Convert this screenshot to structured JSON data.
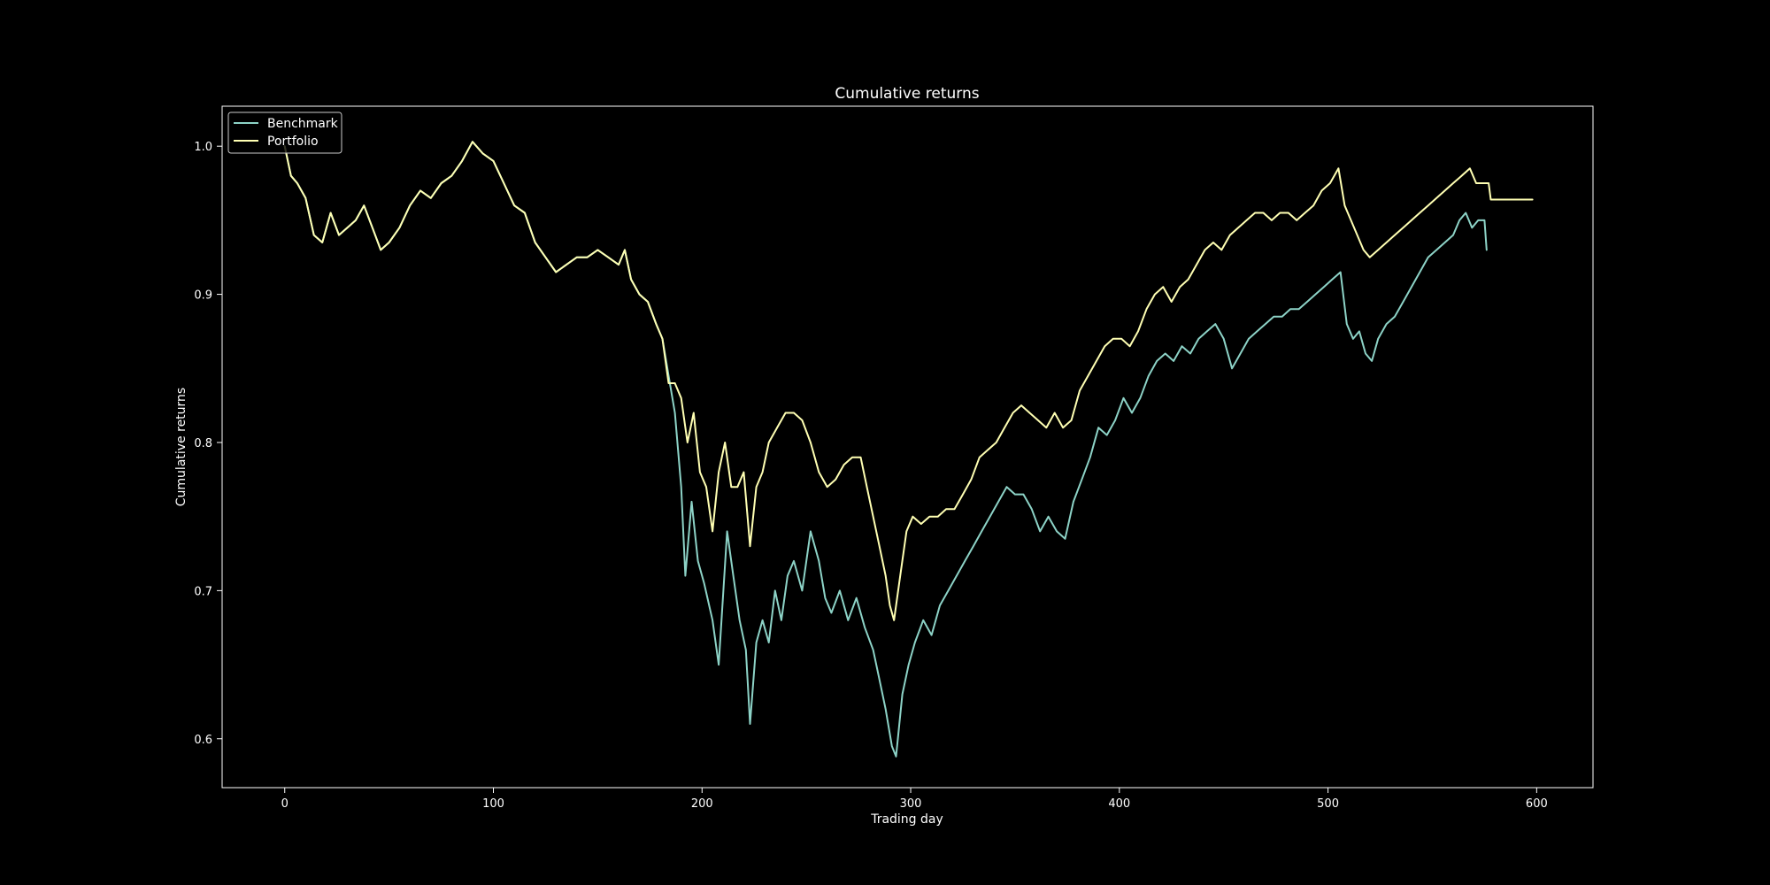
{
  "chart_data": {
    "type": "line",
    "title": "Cumulative returns",
    "xlabel": "Trading day",
    "ylabel": "Cumulative returns",
    "xlim": [
      -30,
      627
    ],
    "ylim": [
      0.567,
      1.027
    ],
    "xticks": [
      0,
      100,
      200,
      300,
      400,
      500,
      600
    ],
    "yticks": [
      0.6,
      0.7,
      0.8,
      0.9,
      1.0
    ],
    "xtick_labels": [
      "0",
      "100",
      "200",
      "300",
      "400",
      "500",
      "600"
    ],
    "ytick_labels": [
      "0.6",
      "0.7",
      "0.8",
      "0.9",
      "1.0"
    ],
    "grid": false,
    "legend_position": "top-left",
    "background": "#000000",
    "foreground": "#ffffff",
    "series": [
      {
        "name": "Benchmark",
        "color": "#8dd3c7",
        "points": [
          [
            0,
            1.0
          ],
          [
            3,
            0.98
          ],
          [
            6,
            0.975
          ],
          [
            10,
            0.965
          ],
          [
            14,
            0.94
          ],
          [
            18,
            0.935
          ],
          [
            22,
            0.955
          ],
          [
            26,
            0.94
          ],
          [
            30,
            0.945
          ],
          [
            34,
            0.95
          ],
          [
            38,
            0.96
          ],
          [
            42,
            0.945
          ],
          [
            46,
            0.93
          ],
          [
            50,
            0.935
          ],
          [
            55,
            0.945
          ],
          [
            60,
            0.96
          ],
          [
            65,
            0.97
          ],
          [
            70,
            0.965
          ],
          [
            75,
            0.975
          ],
          [
            80,
            0.98
          ],
          [
            85,
            0.99
          ],
          [
            90,
            1.003
          ],
          [
            95,
            0.995
          ],
          [
            100,
            0.99
          ],
          [
            105,
            0.975
          ],
          [
            110,
            0.96
          ],
          [
            115,
            0.955
          ],
          [
            120,
            0.935
          ],
          [
            125,
            0.925
          ],
          [
            130,
            0.915
          ],
          [
            135,
            0.92
          ],
          [
            140,
            0.925
          ],
          [
            145,
            0.925
          ],
          [
            150,
            0.93
          ],
          [
            155,
            0.925
          ],
          [
            160,
            0.92
          ],
          [
            163,
            0.93
          ],
          [
            166,
            0.91
          ],
          [
            170,
            0.9
          ],
          [
            174,
            0.895
          ],
          [
            178,
            0.88
          ],
          [
            181,
            0.87
          ],
          [
            184,
            0.845
          ],
          [
            187,
            0.82
          ],
          [
            190,
            0.77
          ],
          [
            192,
            0.71
          ],
          [
            195,
            0.76
          ],
          [
            198,
            0.72
          ],
          [
            201,
            0.705
          ],
          [
            205,
            0.68
          ],
          [
            208,
            0.65
          ],
          [
            212,
            0.74
          ],
          [
            215,
            0.71
          ],
          [
            218,
            0.68
          ],
          [
            221,
            0.66
          ],
          [
            223,
            0.61
          ],
          [
            226,
            0.665
          ],
          [
            229,
            0.68
          ],
          [
            232,
            0.665
          ],
          [
            235,
            0.7
          ],
          [
            238,
            0.68
          ],
          [
            241,
            0.71
          ],
          [
            244,
            0.72
          ],
          [
            248,
            0.7
          ],
          [
            252,
            0.74
          ],
          [
            256,
            0.72
          ],
          [
            259,
            0.695
          ],
          [
            262,
            0.685
          ],
          [
            266,
            0.7
          ],
          [
            270,
            0.68
          ],
          [
            274,
            0.695
          ],
          [
            278,
            0.675
          ],
          [
            282,
            0.66
          ],
          [
            285,
            0.64
          ],
          [
            288,
            0.62
          ],
          [
            291,
            0.595
          ],
          [
            293,
            0.588
          ],
          [
            296,
            0.63
          ],
          [
            299,
            0.65
          ],
          [
            302,
            0.665
          ],
          [
            306,
            0.68
          ],
          [
            310,
            0.67
          ],
          [
            314,
            0.69
          ],
          [
            318,
            0.7
          ],
          [
            322,
            0.71
          ],
          [
            326,
            0.72
          ],
          [
            330,
            0.73
          ],
          [
            334,
            0.74
          ],
          [
            338,
            0.75
          ],
          [
            342,
            0.76
          ],
          [
            346,
            0.77
          ],
          [
            350,
            0.765
          ],
          [
            354,
            0.765
          ],
          [
            358,
            0.755
          ],
          [
            362,
            0.74
          ],
          [
            366,
            0.75
          ],
          [
            370,
            0.74
          ],
          [
            374,
            0.735
          ],
          [
            378,
            0.76
          ],
          [
            382,
            0.775
          ],
          [
            386,
            0.79
          ],
          [
            390,
            0.81
          ],
          [
            394,
            0.805
          ],
          [
            398,
            0.815
          ],
          [
            402,
            0.83
          ],
          [
            406,
            0.82
          ],
          [
            410,
            0.83
          ],
          [
            414,
            0.845
          ],
          [
            418,
            0.855
          ],
          [
            422,
            0.86
          ],
          [
            426,
            0.855
          ],
          [
            430,
            0.865
          ],
          [
            434,
            0.86
          ],
          [
            438,
            0.87
          ],
          [
            442,
            0.875
          ],
          [
            446,
            0.88
          ],
          [
            450,
            0.87
          ],
          [
            454,
            0.85
          ],
          [
            458,
            0.86
          ],
          [
            462,
            0.87
          ],
          [
            466,
            0.875
          ],
          [
            470,
            0.88
          ],
          [
            474,
            0.885
          ],
          [
            478,
            0.885
          ],
          [
            482,
            0.89
          ],
          [
            486,
            0.89
          ],
          [
            490,
            0.895
          ],
          [
            494,
            0.9
          ],
          [
            498,
            0.905
          ],
          [
            502,
            0.91
          ],
          [
            506,
            0.915
          ],
          [
            509,
            0.88
          ],
          [
            512,
            0.87
          ],
          [
            515,
            0.875
          ],
          [
            518,
            0.86
          ],
          [
            521,
            0.855
          ],
          [
            524,
            0.87
          ],
          [
            528,
            0.88
          ],
          [
            532,
            0.885
          ],
          [
            536,
            0.895
          ],
          [
            540,
            0.905
          ],
          [
            544,
            0.915
          ],
          [
            548,
            0.925
          ],
          [
            552,
            0.93
          ],
          [
            556,
            0.935
          ],
          [
            560,
            0.94
          ],
          [
            563,
            0.95
          ],
          [
            566,
            0.955
          ],
          [
            569,
            0.945
          ],
          [
            572,
            0.95
          ],
          [
            575,
            0.95
          ],
          [
            576,
            0.93
          ]
        ]
      },
      {
        "name": "Portfolio",
        "color": "#ffffb3",
        "points": [
          [
            0,
            1.0
          ],
          [
            3,
            0.98
          ],
          [
            6,
            0.975
          ],
          [
            10,
            0.965
          ],
          [
            14,
            0.94
          ],
          [
            18,
            0.935
          ],
          [
            22,
            0.955
          ],
          [
            26,
            0.94
          ],
          [
            30,
            0.945
          ],
          [
            34,
            0.95
          ],
          [
            38,
            0.96
          ],
          [
            42,
            0.945
          ],
          [
            46,
            0.93
          ],
          [
            50,
            0.935
          ],
          [
            55,
            0.945
          ],
          [
            60,
            0.96
          ],
          [
            65,
            0.97
          ],
          [
            70,
            0.965
          ],
          [
            75,
            0.975
          ],
          [
            80,
            0.98
          ],
          [
            85,
            0.99
          ],
          [
            90,
            1.003
          ],
          [
            95,
            0.995
          ],
          [
            100,
            0.99
          ],
          [
            105,
            0.975
          ],
          [
            110,
            0.96
          ],
          [
            115,
            0.955
          ],
          [
            120,
            0.935
          ],
          [
            125,
            0.925
          ],
          [
            130,
            0.915
          ],
          [
            135,
            0.92
          ],
          [
            140,
            0.925
          ],
          [
            145,
            0.925
          ],
          [
            150,
            0.93
          ],
          [
            155,
            0.925
          ],
          [
            160,
            0.92
          ],
          [
            163,
            0.93
          ],
          [
            166,
            0.91
          ],
          [
            170,
            0.9
          ],
          [
            174,
            0.895
          ],
          [
            178,
            0.88
          ],
          [
            181,
            0.87
          ],
          [
            184,
            0.84
          ],
          [
            187,
            0.84
          ],
          [
            190,
            0.83
          ],
          [
            193,
            0.8
          ],
          [
            196,
            0.82
          ],
          [
            199,
            0.78
          ],
          [
            202,
            0.77
          ],
          [
            205,
            0.74
          ],
          [
            208,
            0.78
          ],
          [
            211,
            0.8
          ],
          [
            214,
            0.77
          ],
          [
            217,
            0.77
          ],
          [
            220,
            0.78
          ],
          [
            223,
            0.73
          ],
          [
            226,
            0.77
          ],
          [
            229,
            0.78
          ],
          [
            232,
            0.8
          ],
          [
            236,
            0.81
          ],
          [
            240,
            0.82
          ],
          [
            244,
            0.82
          ],
          [
            248,
            0.815
          ],
          [
            252,
            0.8
          ],
          [
            256,
            0.78
          ],
          [
            260,
            0.77
          ],
          [
            264,
            0.775
          ],
          [
            268,
            0.785
          ],
          [
            272,
            0.79
          ],
          [
            276,
            0.79
          ],
          [
            279,
            0.77
          ],
          [
            282,
            0.75
          ],
          [
            285,
            0.73
          ],
          [
            288,
            0.71
          ],
          [
            290,
            0.69
          ],
          [
            292,
            0.68
          ],
          [
            295,
            0.71
          ],
          [
            298,
            0.74
          ],
          [
            301,
            0.75
          ],
          [
            305,
            0.745
          ],
          [
            309,
            0.75
          ],
          [
            313,
            0.75
          ],
          [
            317,
            0.755
          ],
          [
            321,
            0.755
          ],
          [
            325,
            0.765
          ],
          [
            329,
            0.775
          ],
          [
            333,
            0.79
          ],
          [
            337,
            0.795
          ],
          [
            341,
            0.8
          ],
          [
            345,
            0.81
          ],
          [
            349,
            0.82
          ],
          [
            353,
            0.825
          ],
          [
            357,
            0.82
          ],
          [
            361,
            0.815
          ],
          [
            365,
            0.81
          ],
          [
            369,
            0.82
          ],
          [
            373,
            0.81
          ],
          [
            377,
            0.815
          ],
          [
            381,
            0.835
          ],
          [
            385,
            0.845
          ],
          [
            389,
            0.855
          ],
          [
            393,
            0.865
          ],
          [
            397,
            0.87
          ],
          [
            401,
            0.87
          ],
          [
            405,
            0.865
          ],
          [
            409,
            0.875
          ],
          [
            413,
            0.89
          ],
          [
            417,
            0.9
          ],
          [
            421,
            0.905
          ],
          [
            425,
            0.895
          ],
          [
            429,
            0.905
          ],
          [
            433,
            0.91
          ],
          [
            437,
            0.92
          ],
          [
            441,
            0.93
          ],
          [
            445,
            0.935
          ],
          [
            449,
            0.93
          ],
          [
            453,
            0.94
          ],
          [
            457,
            0.945
          ],
          [
            461,
            0.95
          ],
          [
            465,
            0.955
          ],
          [
            469,
            0.955
          ],
          [
            473,
            0.95
          ],
          [
            477,
            0.955
          ],
          [
            481,
            0.955
          ],
          [
            485,
            0.95
          ],
          [
            489,
            0.955
          ],
          [
            493,
            0.96
          ],
          [
            497,
            0.97
          ],
          [
            501,
            0.975
          ],
          [
            505,
            0.985
          ],
          [
            508,
            0.96
          ],
          [
            511,
            0.95
          ],
          [
            514,
            0.94
          ],
          [
            517,
            0.93
          ],
          [
            520,
            0.925
          ],
          [
            524,
            0.93
          ],
          [
            528,
            0.935
          ],
          [
            532,
            0.94
          ],
          [
            536,
            0.945
          ],
          [
            540,
            0.95
          ],
          [
            544,
            0.955
          ],
          [
            548,
            0.96
          ],
          [
            552,
            0.965
          ],
          [
            556,
            0.97
          ],
          [
            560,
            0.975
          ],
          [
            564,
            0.98
          ],
          [
            568,
            0.985
          ],
          [
            571,
            0.975
          ],
          [
            574,
            0.975
          ],
          [
            577,
            0.975
          ],
          [
            578,
            0.964
          ],
          [
            598,
            0.964
          ]
        ]
      }
    ]
  }
}
